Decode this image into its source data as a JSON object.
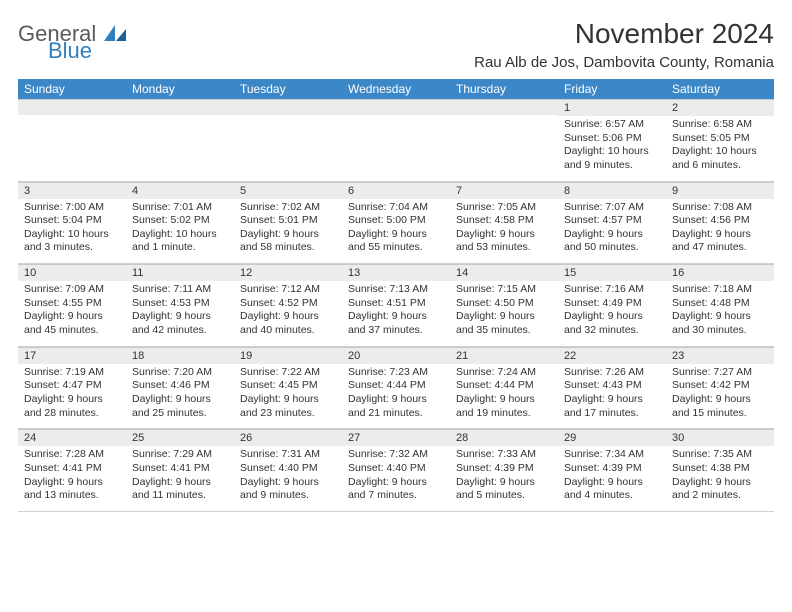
{
  "logo": {
    "text1": "General",
    "text2": "Blue"
  },
  "title": "November 2024",
  "location": "Rau Alb de Jos, Dambovita County, Romania",
  "colors": {
    "header_bg": "#3b87c8",
    "header_fg": "#ffffff",
    "daynum_bg": "#ececec",
    "grid_line": "#d0d0d0",
    "text": "#333333",
    "logo_gray": "#5a5a5a",
    "logo_blue": "#2f7fbf",
    "page_bg": "#ffffff"
  },
  "weekdays": [
    "Sunday",
    "Monday",
    "Tuesday",
    "Wednesday",
    "Thursday",
    "Friday",
    "Saturday"
  ],
  "weeks": [
    [
      null,
      null,
      null,
      null,
      null,
      {
        "n": "1",
        "sr": "6:57 AM",
        "ss": "5:06 PM",
        "dl": "10 hours and 9 minutes."
      },
      {
        "n": "2",
        "sr": "6:58 AM",
        "ss": "5:05 PM",
        "dl": "10 hours and 6 minutes."
      }
    ],
    [
      {
        "n": "3",
        "sr": "7:00 AM",
        "ss": "5:04 PM",
        "dl": "10 hours and 3 minutes."
      },
      {
        "n": "4",
        "sr": "7:01 AM",
        "ss": "5:02 PM",
        "dl": "10 hours and 1 minute."
      },
      {
        "n": "5",
        "sr": "7:02 AM",
        "ss": "5:01 PM",
        "dl": "9 hours and 58 minutes."
      },
      {
        "n": "6",
        "sr": "7:04 AM",
        "ss": "5:00 PM",
        "dl": "9 hours and 55 minutes."
      },
      {
        "n": "7",
        "sr": "7:05 AM",
        "ss": "4:58 PM",
        "dl": "9 hours and 53 minutes."
      },
      {
        "n": "8",
        "sr": "7:07 AM",
        "ss": "4:57 PM",
        "dl": "9 hours and 50 minutes."
      },
      {
        "n": "9",
        "sr": "7:08 AM",
        "ss": "4:56 PM",
        "dl": "9 hours and 47 minutes."
      }
    ],
    [
      {
        "n": "10",
        "sr": "7:09 AM",
        "ss": "4:55 PM",
        "dl": "9 hours and 45 minutes."
      },
      {
        "n": "11",
        "sr": "7:11 AM",
        "ss": "4:53 PM",
        "dl": "9 hours and 42 minutes."
      },
      {
        "n": "12",
        "sr": "7:12 AM",
        "ss": "4:52 PM",
        "dl": "9 hours and 40 minutes."
      },
      {
        "n": "13",
        "sr": "7:13 AM",
        "ss": "4:51 PM",
        "dl": "9 hours and 37 minutes."
      },
      {
        "n": "14",
        "sr": "7:15 AM",
        "ss": "4:50 PM",
        "dl": "9 hours and 35 minutes."
      },
      {
        "n": "15",
        "sr": "7:16 AM",
        "ss": "4:49 PM",
        "dl": "9 hours and 32 minutes."
      },
      {
        "n": "16",
        "sr": "7:18 AM",
        "ss": "4:48 PM",
        "dl": "9 hours and 30 minutes."
      }
    ],
    [
      {
        "n": "17",
        "sr": "7:19 AM",
        "ss": "4:47 PM",
        "dl": "9 hours and 28 minutes."
      },
      {
        "n": "18",
        "sr": "7:20 AM",
        "ss": "4:46 PM",
        "dl": "9 hours and 25 minutes."
      },
      {
        "n": "19",
        "sr": "7:22 AM",
        "ss": "4:45 PM",
        "dl": "9 hours and 23 minutes."
      },
      {
        "n": "20",
        "sr": "7:23 AM",
        "ss": "4:44 PM",
        "dl": "9 hours and 21 minutes."
      },
      {
        "n": "21",
        "sr": "7:24 AM",
        "ss": "4:44 PM",
        "dl": "9 hours and 19 minutes."
      },
      {
        "n": "22",
        "sr": "7:26 AM",
        "ss": "4:43 PM",
        "dl": "9 hours and 17 minutes."
      },
      {
        "n": "23",
        "sr": "7:27 AM",
        "ss": "4:42 PM",
        "dl": "9 hours and 15 minutes."
      }
    ],
    [
      {
        "n": "24",
        "sr": "7:28 AM",
        "ss": "4:41 PM",
        "dl": "9 hours and 13 minutes."
      },
      {
        "n": "25",
        "sr": "7:29 AM",
        "ss": "4:41 PM",
        "dl": "9 hours and 11 minutes."
      },
      {
        "n": "26",
        "sr": "7:31 AM",
        "ss": "4:40 PM",
        "dl": "9 hours and 9 minutes."
      },
      {
        "n": "27",
        "sr": "7:32 AM",
        "ss": "4:40 PM",
        "dl": "9 hours and 7 minutes."
      },
      {
        "n": "28",
        "sr": "7:33 AM",
        "ss": "4:39 PM",
        "dl": "9 hours and 5 minutes."
      },
      {
        "n": "29",
        "sr": "7:34 AM",
        "ss": "4:39 PM",
        "dl": "9 hours and 4 minutes."
      },
      {
        "n": "30",
        "sr": "7:35 AM",
        "ss": "4:38 PM",
        "dl": "9 hours and 2 minutes."
      }
    ]
  ],
  "labels": {
    "sunrise": "Sunrise:",
    "sunset": "Sunset:",
    "daylight": "Daylight:"
  }
}
